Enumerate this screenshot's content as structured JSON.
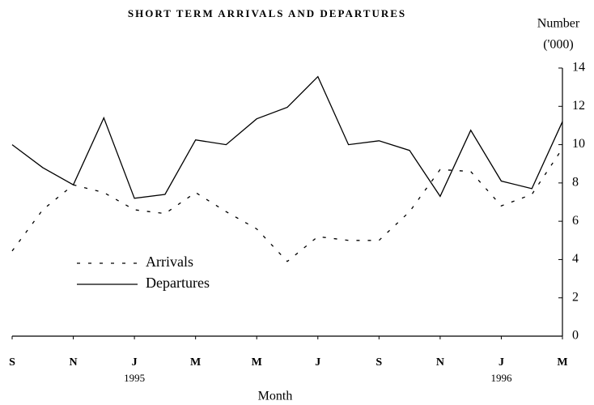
{
  "chart_data": {
    "type": "line",
    "title": "SHORT TERM ARRIVALS AND DEPARTURES",
    "xlabel": "Month",
    "ylabel": [
      "Number",
      "('000)"
    ],
    "categories": [
      "S",
      null,
      "N",
      null,
      "J",
      null,
      "M",
      null,
      "M",
      null,
      "J",
      null,
      "S",
      null,
      "N",
      null,
      "J",
      null,
      "M"
    ],
    "annotations": [
      "1995",
      "1996"
    ],
    "series": [
      {
        "name": "Arrivals",
        "color": "#000000",
        "style": "dashed",
        "values": [
          4.45,
          6.6,
          7.9,
          7.5,
          6.6,
          6.4,
          7.5,
          6.5,
          5.6,
          3.9,
          5.2,
          5.0,
          5.0,
          6.5,
          8.7,
          8.6,
          6.8,
          7.4,
          9.8
        ]
      },
      {
        "name": "Departures",
        "color": "#000000",
        "style": "solid",
        "values": [
          10.0,
          8.8,
          7.9,
          11.4,
          7.2,
          7.4,
          10.25,
          10.0,
          11.35,
          11.95,
          13.55,
          10.0,
          10.2,
          9.7,
          7.3,
          10.75,
          8.1,
          7.7,
          11.2
        ]
      }
    ],
    "ylim": [
      0,
      14
    ],
    "yticks": [
      0,
      2,
      4,
      6,
      8,
      10,
      12,
      14
    ],
    "yaxis_side": "right",
    "legend": "center-left",
    "grid": false
  }
}
